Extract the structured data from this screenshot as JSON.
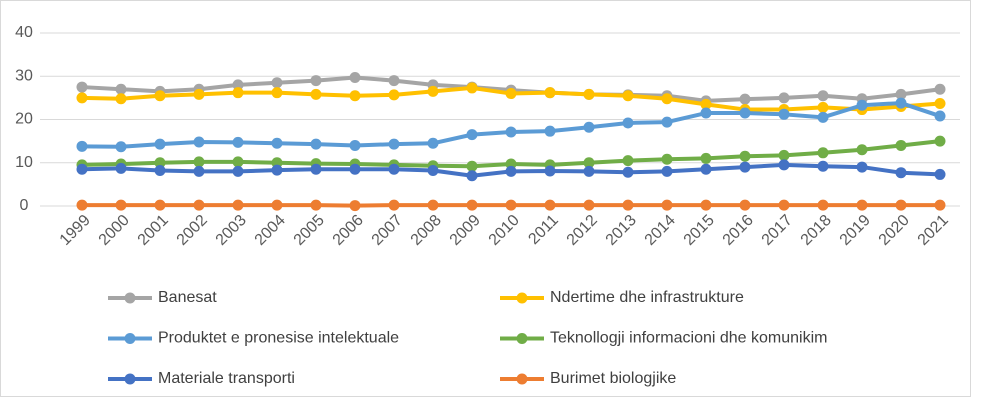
{
  "chart_data": {
    "type": "line",
    "categories": [
      "1999",
      "2000",
      "2001",
      "2002",
      "2003",
      "2004",
      "2005",
      "2006",
      "2007",
      "2008",
      "2009",
      "2010",
      "2011",
      "2012",
      "2013",
      "2014",
      "2015",
      "2016",
      "2017",
      "2018",
      "2019",
      "2020",
      "2021"
    ],
    "ylim": [
      0,
      40
    ],
    "yticks": [
      0,
      10,
      20,
      30,
      40
    ],
    "grid": true,
    "series": [
      {
        "name": "Banesat",
        "color": "#a5a5a5",
        "values": [
          27.5,
          27,
          26.5,
          27,
          28,
          28.5,
          29,
          29.7,
          29,
          28,
          27.5,
          26.8,
          26.2,
          25.8,
          25.7,
          25.5,
          24.3,
          24.7,
          25,
          25.5,
          24.8,
          25.8,
          27
        ]
      },
      {
        "name": "Ndertime dhe infrastrukture",
        "color": "#ffc000",
        "values": [
          25,
          24.8,
          25.5,
          25.8,
          26.2,
          26.2,
          25.8,
          25.5,
          25.7,
          26.5,
          27.3,
          26,
          26.2,
          25.8,
          25.5,
          24.8,
          23.5,
          22.3,
          22.3,
          22.8,
          22.3,
          23,
          23.7
        ]
      },
      {
        "name": "Produktet e pronesise intelektuale",
        "color": "#5b9bd5",
        "values": [
          13.8,
          13.7,
          14.3,
          14.8,
          14.7,
          14.5,
          14.3,
          14,
          14.3,
          14.5,
          16.5,
          17.1,
          17.3,
          18.2,
          19.2,
          19.4,
          21.5,
          21.5,
          21.2,
          20.5,
          23.3,
          23.8,
          20.8
        ]
      },
      {
        "name": "Teknollogji informacioni dhe komunikim",
        "color": "#70ad47",
        "values": [
          9.5,
          9.7,
          10,
          10.2,
          10.2,
          10,
          9.8,
          9.7,
          9.5,
          9.3,
          9.2,
          9.7,
          9.5,
          10,
          10.5,
          10.8,
          11,
          11.5,
          11.7,
          12.3,
          13,
          14,
          15
        ]
      },
      {
        "name": "Materiale transporti",
        "color": "#4472c4",
        "values": [
          8.5,
          8.7,
          8.2,
          8,
          8,
          8.3,
          8.5,
          8.5,
          8.5,
          8.2,
          7,
          8,
          8.1,
          8,
          7.8,
          8,
          8.5,
          9,
          9.5,
          9.2,
          9,
          7.7,
          7.3
        ]
      },
      {
        "name": "Burimet biologjike",
        "color": "#ed7d31",
        "values": [
          0.2,
          0.2,
          0.2,
          0.2,
          0.2,
          0.2,
          0.2,
          0.1,
          0.2,
          0.2,
          0.2,
          0.2,
          0.2,
          0.2,
          0.2,
          0.2,
          0.2,
          0.2,
          0.2,
          0.2,
          0.2,
          0.2,
          0.2
        ]
      }
    ]
  }
}
